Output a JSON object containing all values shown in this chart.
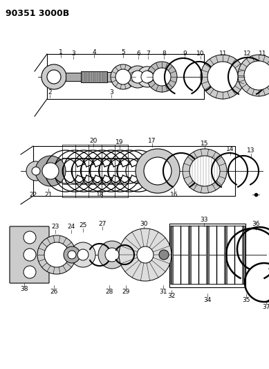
{
  "title": "90351 3000B",
  "bg_color": "#ffffff",
  "line_color": "#000000",
  "gray_light": "#cccccc",
  "gray_mid": "#aaaaaa",
  "gray_dark": "#888888",
  "title_fontsize": 9,
  "fig_width": 3.89,
  "fig_height": 5.33,
  "dpi": 100
}
